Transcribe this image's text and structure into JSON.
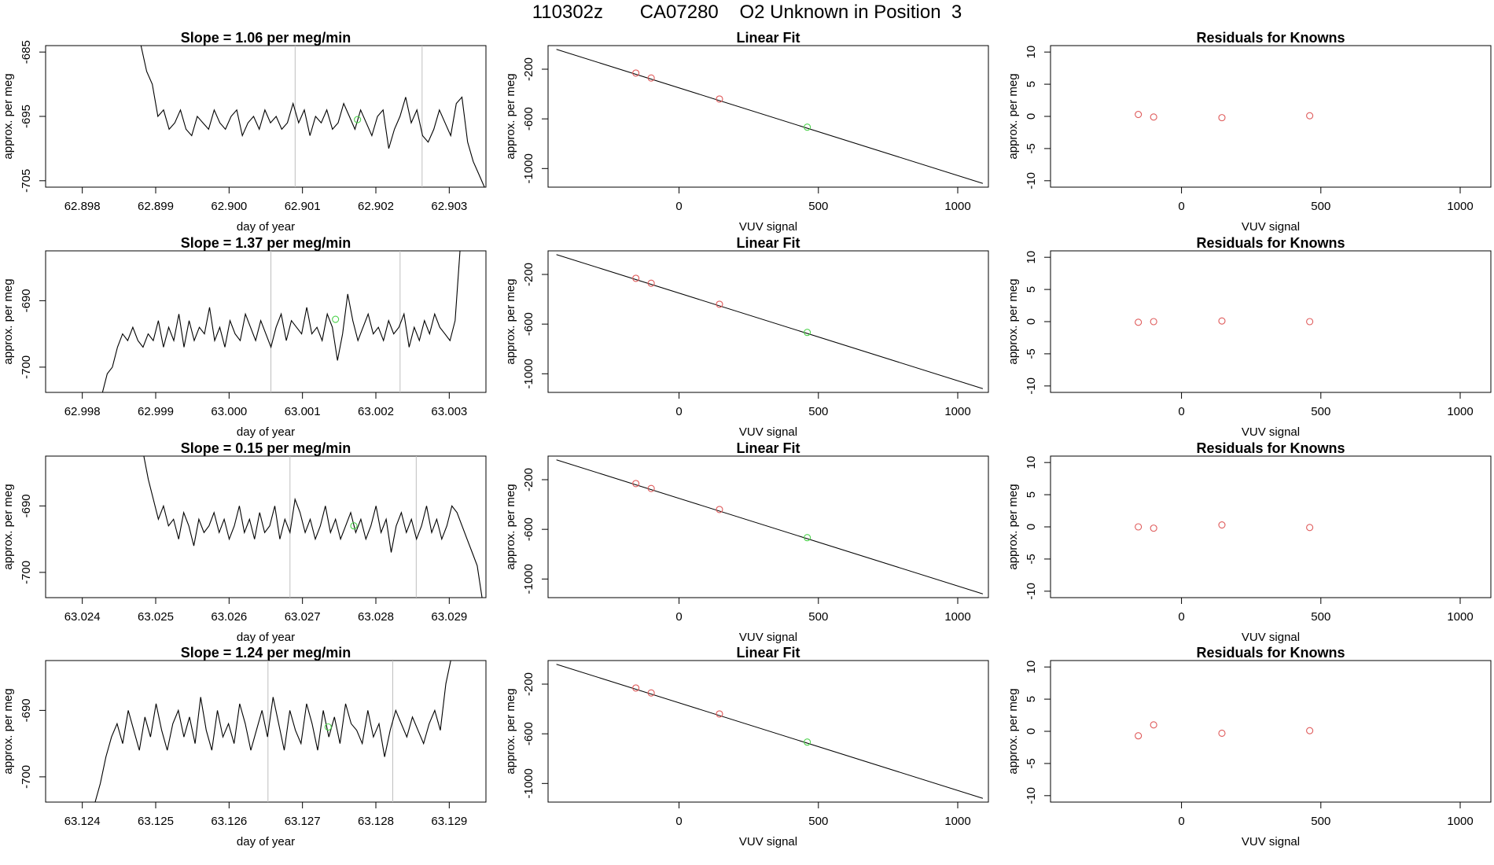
{
  "figure": {
    "title": "110302z       CA07280    O2 Unknown in Position  3"
  },
  "chart_data": [
    {
      "type": "line",
      "row": 1,
      "panel": "time-series",
      "title": "Slope =  1.06  per meg/min",
      "xlabel": "day of year",
      "ylabel": "approx. per meg",
      "xlim": [
        62.8975,
        62.9035
      ],
      "ylim": [
        -706,
        -684
      ],
      "xticks": [
        "62.898",
        "62.899",
        "62.900",
        "62.901",
        "62.902",
        "62.903"
      ],
      "yticks": [
        "-685",
        "-695",
        "-705"
      ],
      "vlines": [
        62.9009,
        62.90263
      ],
      "x_start": 62.8988,
      "x_end": 62.90348,
      "trace": [
        -684,
        -688,
        -690,
        -695,
        -694,
        -697,
        -696,
        -694,
        -697,
        -698,
        -695,
        -696,
        -697,
        -694,
        -696,
        -697,
        -695,
        -694,
        -698,
        -696,
        -695,
        -697,
        -694,
        -696,
        -695,
        -697,
        -696,
        -693,
        -696,
        -694,
        -698,
        -695,
        -696,
        -694,
        -697,
        -696,
        -693,
        -695,
        -697,
        -694,
        -696,
        -698,
        -695,
        -694,
        -700,
        -697,
        -695,
        -692,
        -696,
        -694,
        -698,
        -699,
        -697,
        -694,
        -696,
        -698,
        -693,
        -692,
        -699,
        -702,
        -704,
        -706
      ],
      "marker": {
        "x": 62.90175,
        "y": -695.5
      }
    },
    {
      "type": "line",
      "row": 1,
      "panel": "linear-fit",
      "title": "Linear Fit",
      "xlabel": "VUV signal",
      "ylabel": "approx. per meg",
      "xlim": [
        -470,
        1110
      ],
      "ylim": [
        -1150,
        -10
      ],
      "xticks": [
        "0",
        "500",
        "1000"
      ],
      "yticks": [
        "-200",
        "-600",
        "-1000"
      ],
      "fit_line": {
        "x": [
          -440,
          1090
        ],
        "y": [
          -40,
          -1120
        ]
      },
      "knowns": {
        "x": [
          -155,
          -100,
          145
        ],
        "y": [
          -231,
          -271,
          -440
        ]
      },
      "unknown": {
        "x": [
          460
        ],
        "y": [
          -667
        ]
      }
    },
    {
      "type": "scatter",
      "row": 1,
      "panel": "residuals",
      "title": "Residuals for Knowns",
      "xlabel": "VUV signal",
      "ylabel": "approx. per meg",
      "xlim": [
        -470,
        1110
      ],
      "ylim": [
        -11,
        11
      ],
      "xticks": [
        "0",
        "500",
        "1000"
      ],
      "yticks": [
        "10",
        "5",
        "0",
        "-5",
        "-10"
      ],
      "x": [
        -155,
        -100,
        145,
        460
      ],
      "y": [
        0.3,
        -0.1,
        -0.2,
        0.1
      ]
    },
    {
      "type": "line",
      "row": 2,
      "panel": "time-series",
      "title": "Slope =  1.37  per meg/min",
      "xlabel": "day of year",
      "ylabel": "approx. per meg",
      "xlim": [
        62.9975,
        63.0035
      ],
      "ylim": [
        -703.8,
        -682.5
      ],
      "xticks": [
        "62.998",
        "62.999",
        "63.000",
        "63.001",
        "63.002",
        "63.003"
      ],
      "yticks": [
        "-690",
        "-700"
      ],
      "vlines": [
        63.00057,
        63.00233
      ],
      "x_start": 62.99827,
      "x_end": 63.00315,
      "trace": [
        -704,
        -701,
        -700,
        -697,
        -695,
        -696,
        -694,
        -696,
        -697,
        -695,
        -696,
        -693,
        -697,
        -694,
        -696,
        -692,
        -697,
        -693,
        -696,
        -694,
        -695,
        -691,
        -696,
        -694,
        -697,
        -693,
        -695,
        -696,
        -692,
        -694,
        -696,
        -693,
        -695,
        -697,
        -694,
        -692,
        -696,
        -693,
        -694,
        -695,
        -691,
        -695,
        -694,
        -696,
        -692,
        -694,
        -699,
        -695,
        -689,
        -693,
        -696,
        -694,
        -692,
        -695,
        -694,
        -696,
        -693,
        -695,
        -694,
        -692,
        -697,
        -694,
        -696,
        -693,
        -695,
        -692,
        -694,
        -695,
        -696,
        -693,
        -682
      ],
      "marker": {
        "x": 63.00145,
        "y": -692.8
      }
    },
    {
      "type": "line",
      "row": 2,
      "panel": "linear-fit",
      "title": "Linear Fit",
      "xlabel": "VUV signal",
      "ylabel": "approx. per meg",
      "xlim": [
        -470,
        1110
      ],
      "ylim": [
        -1150,
        -10
      ],
      "xticks": [
        "0",
        "500",
        "1000"
      ],
      "yticks": [
        "-200",
        "-600",
        "-1000"
      ],
      "fit_line": {
        "x": [
          -440,
          1090
        ],
        "y": [
          -40,
          -1120
        ]
      },
      "knowns": {
        "x": [
          -155,
          -100,
          145
        ],
        "y": [
          -231,
          -271,
          -440
        ]
      },
      "unknown": {
        "x": [
          460
        ],
        "y": [
          -667
        ]
      }
    },
    {
      "type": "scatter",
      "row": 2,
      "panel": "residuals",
      "title": "Residuals for Knowns",
      "xlabel": "VUV signal",
      "ylabel": "approx. per meg",
      "xlim": [
        -470,
        1110
      ],
      "ylim": [
        -11,
        11
      ],
      "xticks": [
        "0",
        "500",
        "1000"
      ],
      "yticks": [
        "10",
        "5",
        "0",
        "-5",
        "-10"
      ],
      "x": [
        -155,
        -100,
        145,
        460
      ],
      "y": [
        -0.1,
        0.0,
        0.1,
        0.0
      ]
    },
    {
      "type": "line",
      "row": 3,
      "panel": "time-series",
      "title": "Slope =  0.15  per meg/min",
      "xlabel": "day of year",
      "ylabel": "approx. per meg",
      "xlim": [
        63.0235,
        63.0295
      ],
      "ylim": [
        -703.8,
        -682.5
      ],
      "xticks": [
        "63.024",
        "63.025",
        "63.026",
        "63.027",
        "63.028",
        "63.029"
      ],
      "yticks": [
        "-690",
        "-700"
      ],
      "vlines": [
        63.02683,
        63.02855
      ],
      "x_start": 63.02483,
      "x_end": 63.02945,
      "trace": [
        -682,
        -686,
        -689,
        -692,
        -690,
        -693,
        -692,
        -695,
        -691,
        -693,
        -696,
        -692,
        -694,
        -693,
        -691,
        -694,
        -692,
        -695,
        -693,
        -690,
        -694,
        -692,
        -695,
        -691,
        -694,
        -693,
        -690,
        -695,
        -692,
        -694,
        -689,
        -691,
        -694,
        -692,
        -695,
        -693,
        -690,
        -694,
        -692,
        -695,
        -693,
        -691,
        -694,
        -692,
        -695,
        -693,
        -690,
        -694,
        -692,
        -697,
        -693,
        -691,
        -694,
        -692,
        -695,
        -693,
        -690,
        -694,
        -692,
        -695,
        -693,
        -690,
        -691,
        -693,
        -695,
        -697,
        -699,
        -704
      ],
      "marker": {
        "x": 63.0277,
        "y": -693
      }
    },
    {
      "type": "line",
      "row": 3,
      "panel": "linear-fit",
      "title": "Linear Fit",
      "xlabel": "VUV signal",
      "ylabel": "approx. per meg",
      "xlim": [
        -470,
        1110
      ],
      "ylim": [
        -1150,
        -10
      ],
      "xticks": [
        "0",
        "500",
        "1000"
      ],
      "yticks": [
        "-200",
        "-600",
        "-1000"
      ],
      "fit_line": {
        "x": [
          -440,
          1090
        ],
        "y": [
          -40,
          -1120
        ]
      },
      "knowns": {
        "x": [
          -155,
          -100,
          145
        ],
        "y": [
          -231,
          -271,
          -440
        ]
      },
      "unknown": {
        "x": [
          460
        ],
        "y": [
          -667
        ]
      }
    },
    {
      "type": "scatter",
      "row": 3,
      "panel": "residuals",
      "title": "Residuals for Knowns",
      "xlabel": "VUV signal",
      "ylabel": "approx. per meg",
      "xlim": [
        -470,
        1110
      ],
      "ylim": [
        -11,
        11
      ],
      "xticks": [
        "0",
        "500",
        "1000"
      ],
      "yticks": [
        "10",
        "5",
        "0",
        "-5",
        "-10"
      ],
      "x": [
        -155,
        -100,
        145,
        460
      ],
      "y": [
        0.0,
        -0.2,
        0.3,
        -0.1
      ]
    },
    {
      "type": "line",
      "row": 4,
      "panel": "time-series",
      "title": "Slope =  1.24  per meg/min",
      "xlabel": "day of year",
      "ylabel": "approx. per meg",
      "xlim": [
        63.1235,
        63.1295
      ],
      "ylim": [
        -703.8,
        -682.5
      ],
      "xticks": [
        "63.124",
        "63.125",
        "63.126",
        "63.127",
        "63.128",
        "63.129"
      ],
      "yticks": [
        "-690",
        "-700"
      ],
      "vlines": [
        63.12653,
        63.12823
      ],
      "x_start": 63.12417,
      "x_end": 63.12903,
      "trace": [
        -704,
        -701,
        -697,
        -694,
        -692,
        -695,
        -690,
        -693,
        -696,
        -691,
        -694,
        -689,
        -693,
        -696,
        -692,
        -690,
        -694,
        -691,
        -695,
        -688,
        -693,
        -696,
        -690,
        -694,
        -692,
        -695,
        -689,
        -692,
        -696,
        -693,
        -690,
        -694,
        -688,
        -692,
        -696,
        -690,
        -693,
        -695,
        -689,
        -692,
        -696,
        -690,
        -694,
        -691,
        -695,
        -689,
        -692,
        -693,
        -695,
        -690,
        -694,
        -692,
        -697,
        -693,
        -690,
        -692,
        -694,
        -691,
        -693,
        -695,
        -692,
        -690,
        -693,
        -686,
        -682
      ],
      "marker": {
        "x": 63.12735,
        "y": -692.5
      }
    },
    {
      "type": "line",
      "row": 4,
      "panel": "linear-fit",
      "title": "Linear Fit",
      "xlabel": "VUV signal",
      "ylabel": "approx. per meg",
      "xlim": [
        -470,
        1110
      ],
      "ylim": [
        -1150,
        -10
      ],
      "xticks": [
        "0",
        "500",
        "1000"
      ],
      "yticks": [
        "-200",
        "-600",
        "-1000"
      ],
      "fit_line": {
        "x": [
          -440,
          1090
        ],
        "y": [
          -40,
          -1120
        ]
      },
      "knowns": {
        "x": [
          -155,
          -100,
          145
        ],
        "y": [
          -231,
          -271,
          -440
        ]
      },
      "unknown": {
        "x": [
          460
        ],
        "y": [
          -667
        ]
      }
    },
    {
      "type": "scatter",
      "row": 4,
      "panel": "residuals",
      "title": "Residuals for Knowns",
      "xlabel": "VUV signal",
      "ylabel": "approx. per meg",
      "xlim": [
        -470,
        1110
      ],
      "ylim": [
        -11,
        11
      ],
      "xticks": [
        "0",
        "500",
        "1000"
      ],
      "yticks": [
        "10",
        "5",
        "0",
        "-5",
        "-10"
      ],
      "x": [
        -155,
        -100,
        145,
        460
      ],
      "y": [
        -0.7,
        1.0,
        -0.3,
        0.1
      ]
    }
  ],
  "colors": {
    "line": "#000000",
    "axis": "#000000",
    "vline": "#bebebe",
    "known": "#df5a5a",
    "unknown": "#4cd24c"
  }
}
